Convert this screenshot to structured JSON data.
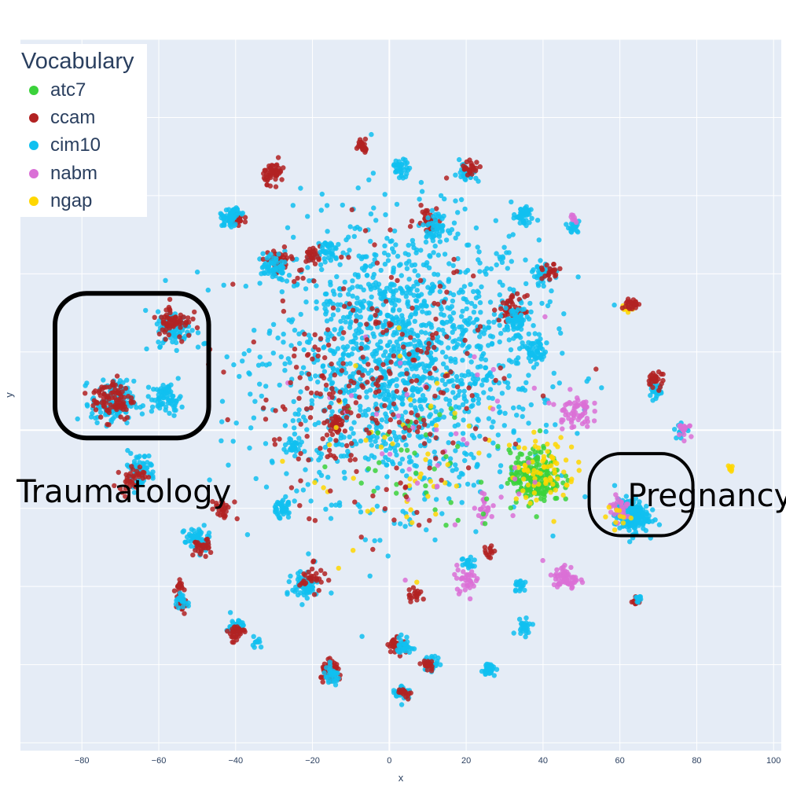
{
  "chart_data": {
    "type": "scatter",
    "xlabel": "x",
    "ylabel": "y",
    "xlim": [
      -96,
      102
    ],
    "ylim": [
      -82,
      100
    ],
    "x_ticks": [
      -80,
      -60,
      -40,
      -20,
      0,
      20,
      40,
      60,
      80,
      100
    ],
    "x_tick_labels": [
      "−80",
      "−60",
      "−40",
      "−20",
      "0",
      "20",
      "40",
      "60",
      "80",
      "100"
    ],
    "grid": true,
    "legend_placement": "top-left",
    "legend_title": "Vocabulary",
    "series": [
      {
        "name": "atc7",
        "color": "#3bd23b"
      },
      {
        "name": "ccam",
        "color": "#b22222"
      },
      {
        "name": "cim10",
        "color": "#10c0f0"
      },
      {
        "name": "nabm",
        "color": "#da70d6"
      },
      {
        "name": "ngap",
        "color": "#ffd700"
      }
    ],
    "clusters": [
      {
        "series": "cim10",
        "x": 3,
        "y": 18,
        "spread": 32,
        "n": 1500
      },
      {
        "series": "cim10",
        "x": -72,
        "y": 7,
        "spread": 5,
        "n": 140
      },
      {
        "series": "ccam",
        "x": -72,
        "y": 8,
        "spread": 5,
        "n": 90
      },
      {
        "series": "cim10",
        "x": -56,
        "y": 26,
        "spread": 4,
        "n": 90
      },
      {
        "series": "ccam",
        "x": -56,
        "y": 28,
        "spread": 4,
        "n": 60
      },
      {
        "series": "cim10",
        "x": -65,
        "y": -10,
        "spread": 4,
        "n": 60
      },
      {
        "series": "ccam",
        "x": -67,
        "y": -12,
        "spread": 3,
        "n": 40
      },
      {
        "series": "cim10",
        "x": -58,
        "y": 8,
        "spread": 3.5,
        "n": 70
      },
      {
        "series": "cim10",
        "x": 63,
        "y": -22,
        "spread": 4,
        "n": 170
      },
      {
        "series": "nabm",
        "x": 60,
        "y": -20,
        "spread": 3,
        "n": 30
      },
      {
        "series": "ngap",
        "x": 60,
        "y": -22,
        "spread": 3,
        "n": 10
      },
      {
        "series": "atc7",
        "x": 38,
        "y": -12,
        "spread": 6,
        "n": 220
      },
      {
        "series": "ngap",
        "x": 40,
        "y": -10,
        "spread": 8,
        "n": 70
      },
      {
        "series": "nabm",
        "x": 48,
        "y": 5,
        "spread": 4,
        "n": 60
      },
      {
        "series": "nabm",
        "x": 46,
        "y": -38,
        "spread": 3,
        "n": 60
      },
      {
        "series": "nabm",
        "x": 20,
        "y": -38,
        "spread": 3,
        "n": 35
      },
      {
        "series": "ngap",
        "x": 89,
        "y": -10,
        "spread": 0.7,
        "n": 12
      },
      {
        "series": "ngap",
        "x": 62,
        "y": 31,
        "spread": 1.5,
        "n": 12
      },
      {
        "series": "ccam",
        "x": 63,
        "y": 32,
        "spread": 1.5,
        "n": 25
      },
      {
        "series": "ccam",
        "x": -30,
        "y": 66,
        "spread": 2.5,
        "n": 50
      },
      {
        "series": "ccam",
        "x": -15,
        "y": -62,
        "spread": 2.5,
        "n": 60
      },
      {
        "series": "cim10",
        "x": -15,
        "y": -63,
        "spread": 2,
        "n": 30
      },
      {
        "series": "ccam",
        "x": -40,
        "y": 54,
        "spread": 2,
        "n": 35
      },
      {
        "series": "cim10",
        "x": -42,
        "y": 54,
        "spread": 2,
        "n": 35
      },
      {
        "series": "ccam",
        "x": 10,
        "y": 54,
        "spread": 3,
        "n": 40
      },
      {
        "series": "cim10",
        "x": 12,
        "y": 52,
        "spread": 3,
        "n": 50
      },
      {
        "series": "ccam",
        "x": 32,
        "y": 31,
        "spread": 3,
        "n": 50
      },
      {
        "series": "cim10",
        "x": 33,
        "y": 28,
        "spread": 3,
        "n": 60
      },
      {
        "series": "cim10",
        "x": 38,
        "y": 20,
        "spread": 3,
        "n": 50
      },
      {
        "series": "ccam",
        "x": -29,
        "y": 43,
        "spread": 3,
        "n": 50
      },
      {
        "series": "cim10",
        "x": -30,
        "y": 42,
        "spread": 3,
        "n": 50
      },
      {
        "series": "cim10",
        "x": -22,
        "y": -40,
        "spread": 3,
        "n": 70
      },
      {
        "series": "ccam",
        "x": -20,
        "y": -38,
        "spread": 3,
        "n": 30
      },
      {
        "series": "cim10",
        "x": -50,
        "y": -28,
        "spread": 3,
        "n": 60
      },
      {
        "series": "ccam",
        "x": -49,
        "y": -30,
        "spread": 2,
        "n": 30
      },
      {
        "series": "cim10",
        "x": 35,
        "y": 55,
        "spread": 2,
        "n": 40
      },
      {
        "series": "cim10",
        "x": 40,
        "y": 40,
        "spread": 2.5,
        "n": 30
      },
      {
        "series": "ccam",
        "x": 42,
        "y": 40,
        "spread": 2,
        "n": 20
      },
      {
        "series": "cim10",
        "x": 3,
        "y": 67,
        "spread": 2,
        "n": 35
      },
      {
        "series": "ccam",
        "x": -7,
        "y": 73,
        "spread": 1.5,
        "n": 25
      },
      {
        "series": "cim10",
        "x": 20,
        "y": 66,
        "spread": 2,
        "n": 25
      },
      {
        "series": "ccam",
        "x": 21,
        "y": 67,
        "spread": 2,
        "n": 25
      },
      {
        "series": "cim10",
        "x": -40,
        "y": 55,
        "spread": 2,
        "n": 25
      },
      {
        "series": "ccam",
        "x": -20,
        "y": 45,
        "spread": 2,
        "n": 25
      },
      {
        "series": "cim10",
        "x": -16,
        "y": 46,
        "spread": 2,
        "n": 30
      },
      {
        "series": "ccam",
        "x": 2,
        "y": -55,
        "spread": 2,
        "n": 35
      },
      {
        "series": "cim10",
        "x": 4,
        "y": -55,
        "spread": 2,
        "n": 30
      },
      {
        "series": "cim10",
        "x": 3,
        "y": -67,
        "spread": 2,
        "n": 30
      },
      {
        "series": "ccam",
        "x": 4,
        "y": -67,
        "spread": 1.5,
        "n": 15
      },
      {
        "series": "cim10",
        "x": 11,
        "y": -60,
        "spread": 2,
        "n": 30
      },
      {
        "series": "ccam",
        "x": 10,
        "y": -60,
        "spread": 1.5,
        "n": 20
      },
      {
        "series": "cim10",
        "x": 26,
        "y": -61,
        "spread": 1.5,
        "n": 30
      },
      {
        "series": "ccam",
        "x": -44,
        "y": -20,
        "spread": 2,
        "n": 25
      },
      {
        "series": "cim10",
        "x": -40,
        "y": -50,
        "spread": 2,
        "n": 25
      },
      {
        "series": "ccam",
        "x": -40,
        "y": -52,
        "spread": 2,
        "n": 30
      },
      {
        "series": "cim10",
        "x": -28,
        "y": -20,
        "spread": 2.5,
        "n": 40
      },
      {
        "series": "ccam",
        "x": -55,
        "y": -40,
        "spread": 1.5,
        "n": 15
      },
      {
        "series": "ccam",
        "x": -54,
        "y": -45,
        "spread": 1.5,
        "n": 20
      },
      {
        "series": "cim10",
        "x": -54,
        "y": -44,
        "spread": 1.5,
        "n": 15
      },
      {
        "series": "cim10",
        "x": 69,
        "y": 10,
        "spread": 1.8,
        "n": 30
      },
      {
        "series": "ccam",
        "x": 69,
        "y": 13,
        "spread": 2,
        "n": 25
      },
      {
        "series": "ccam",
        "x": 64,
        "y": -44,
        "spread": 1.2,
        "n": 15
      },
      {
        "series": "cim10",
        "x": 65,
        "y": -43,
        "spread": 1,
        "n": 10
      },
      {
        "series": "cim10",
        "x": 76,
        "y": 0,
        "spread": 1.5,
        "n": 20
      },
      {
        "series": "nabm",
        "x": 77,
        "y": 0,
        "spread": 1.5,
        "n": 15
      },
      {
        "series": "cim10",
        "x": 48,
        "y": 52,
        "spread": 1.5,
        "n": 20
      },
      {
        "series": "nabm",
        "x": 48,
        "y": 54,
        "spread": 1,
        "n": 8
      },
      {
        "series": "cim10",
        "x": 35,
        "y": -50,
        "spread": 2,
        "n": 25
      },
      {
        "series": "cim10",
        "x": 34,
        "y": -40,
        "spread": 2,
        "n": 20
      },
      {
        "series": "cim10",
        "x": 21,
        "y": -34,
        "spread": 2,
        "n": 20
      },
      {
        "series": "ccam",
        "x": 26,
        "y": -31,
        "spread": 1.5,
        "n": 15
      },
      {
        "series": "cim10",
        "x": -54,
        "y": -43,
        "spread": 1,
        "n": 10
      },
      {
        "series": "cim10",
        "x": -35,
        "y": -54,
        "spread": 1.5,
        "n": 10
      },
      {
        "series": "ccam",
        "x": -14,
        "y": 2,
        "spread": 2.5,
        "n": 35
      },
      {
        "series": "ccam",
        "x": 7,
        "y": -42,
        "spread": 2,
        "n": 20
      },
      {
        "series": "cim10",
        "x": -25,
        "y": -4,
        "spread": 2,
        "n": 30
      },
      {
        "series": "nabm",
        "x": 25,
        "y": -20,
        "spread": 3,
        "n": 25
      },
      {
        "series": "atc7",
        "x": 10,
        "y": -10,
        "spread": 18,
        "n": 40
      },
      {
        "series": "ngap",
        "x": 5,
        "y": -10,
        "spread": 25,
        "n": 50
      },
      {
        "series": "nabm",
        "x": 15,
        "y": 0,
        "spread": 25,
        "n": 40
      },
      {
        "series": "ccam",
        "x": -5,
        "y": 10,
        "spread": 30,
        "n": 260
      }
    ],
    "annotations": [
      {
        "text": "Traumatology",
        "kind": "label",
        "x": -97,
        "y": -16
      },
      {
        "text": "Pregnancy",
        "kind": "label",
        "x": 62,
        "y": -17
      },
      {
        "kind": "box",
        "x0": -87,
        "x1": -47,
        "y0": -2,
        "y1": 35
      },
      {
        "kind": "box",
        "x0": 52,
        "x1": 79,
        "y0": -27,
        "y1": -6
      }
    ]
  }
}
